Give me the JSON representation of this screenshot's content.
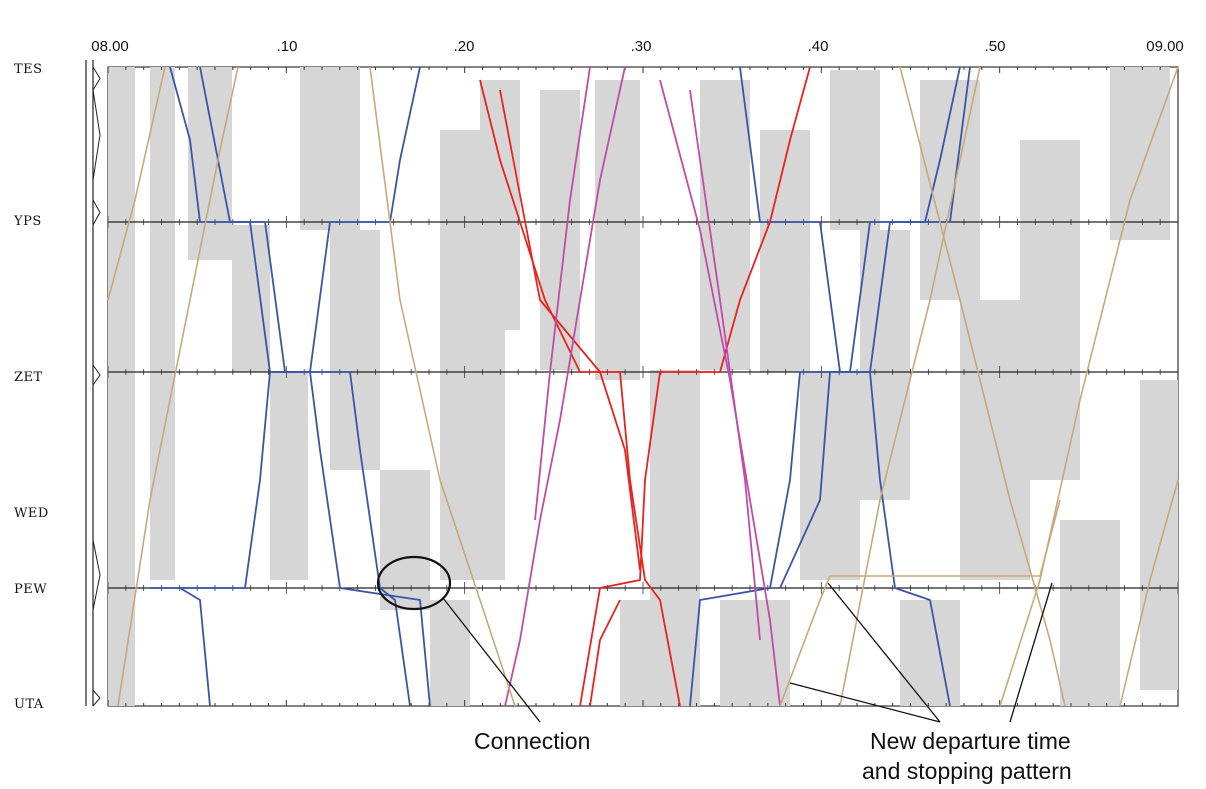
{
  "diagram": {
    "time_axis": {
      "ticks": [
        {
          "label": "08.00",
          "minute": 0
        },
        {
          "label": ".10",
          "minute": 10
        },
        {
          "label": ".20",
          "minute": 20
        },
        {
          "label": ".30",
          "minute": 30
        },
        {
          "label": ".40",
          "minute": 40
        },
        {
          "label": ".50",
          "minute": 50
        },
        {
          "label": "09.00",
          "minute": 60
        }
      ],
      "start_minute": 0,
      "end_minute": 60
    },
    "stations": [
      {
        "code": "TES"
      },
      {
        "code": "YPS"
      },
      {
        "code": "ZET"
      },
      {
        "code": "WED"
      },
      {
        "code": "PEW"
      },
      {
        "code": "UTA"
      }
    ],
    "annotations": {
      "connection": "Connection",
      "new_departure_line1": "New departure time",
      "new_departure_line2": "and stopping pattern"
    },
    "colors": {
      "blue_trains": "#3a55a8",
      "red_trains": "#e8231e",
      "magenta_trains": "#c24aa8",
      "tan_trains": "#c9a878",
      "buffer_fill": "#d6d6d6",
      "station_line": "#222222"
    }
  }
}
